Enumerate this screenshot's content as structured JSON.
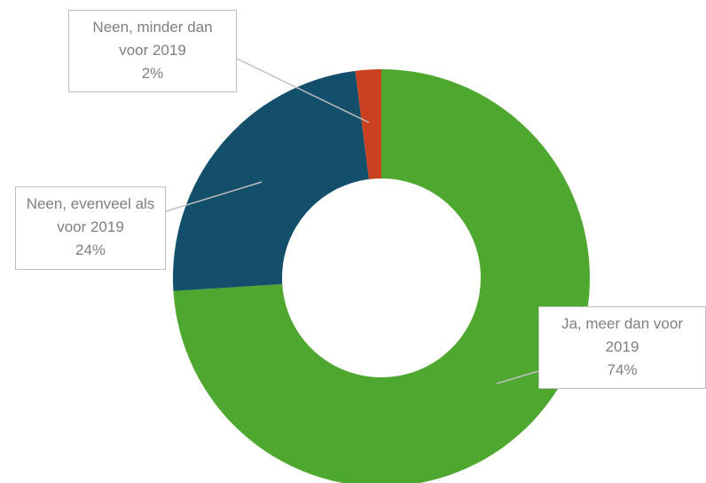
{
  "chart_data": {
    "type": "donut",
    "categories": [
      "Ja, meer dan voor 2019",
      "Neen, evenveel als voor 2019",
      "Neen, minder dan voor 2019"
    ],
    "values": [
      74,
      24,
      2
    ],
    "value_labels": [
      "74%",
      "24%",
      "2%"
    ],
    "colors": [
      "#4ea72e",
      "#134f6b",
      "#c94121"
    ]
  }
}
